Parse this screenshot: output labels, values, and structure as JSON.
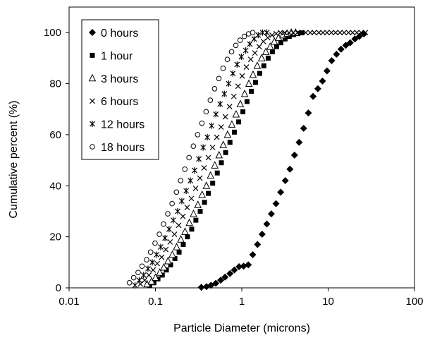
{
  "chart_data": {
    "type": "scatter",
    "xscale": "log",
    "xlim": [
      0.01,
      100
    ],
    "ylim": [
      0,
      110
    ],
    "xlabel": "Particle Diameter (microns)",
    "ylabel": "Cumulative percent (%)",
    "xticks": [
      {
        "value": 0.01,
        "label": "0.01"
      },
      {
        "value": 0.1,
        "label": "0.1"
      },
      {
        "value": 1,
        "label": "1"
      },
      {
        "value": 10,
        "label": "10"
      },
      {
        "value": 100,
        "label": "100"
      }
    ],
    "yticks": [
      {
        "value": 0,
        "label": "0"
      },
      {
        "value": 20,
        "label": "20"
      },
      {
        "value": 40,
        "label": "40"
      },
      {
        "value": 60,
        "label": "60"
      },
      {
        "value": 80,
        "label": "80"
      },
      {
        "value": 100,
        "label": "100"
      }
    ],
    "grid": false,
    "legend_position": "top-left",
    "series": [
      {
        "name": "0 hours",
        "marker": "diamond",
        "points": [
          [
            0.34,
            0.2
          ],
          [
            0.39,
            0.5
          ],
          [
            0.44,
            1.0
          ],
          [
            0.5,
            1.8
          ],
          [
            0.57,
            3.0
          ],
          [
            0.64,
            4.2
          ],
          [
            0.73,
            5.6
          ],
          [
            0.82,
            7.0
          ],
          [
            0.93,
            8.3
          ],
          [
            1.05,
            8.5
          ],
          [
            1.19,
            9.0
          ],
          [
            1.34,
            13.0
          ],
          [
            1.52,
            17.0
          ],
          [
            1.72,
            21.0
          ],
          [
            1.95,
            25.0
          ],
          [
            2.2,
            29.0
          ],
          [
            2.49,
            33.0
          ],
          [
            2.82,
            37.5
          ],
          [
            3.19,
            42.0
          ],
          [
            3.61,
            46.5
          ],
          [
            4.08,
            52.0
          ],
          [
            4.61,
            57.0
          ],
          [
            5.2,
            62.5
          ],
          [
            5.9,
            68.5
          ],
          [
            6.7,
            75.0
          ],
          [
            7.6,
            78.0
          ],
          [
            8.6,
            81.0
          ],
          [
            9.7,
            85.0
          ],
          [
            11.0,
            89.0
          ],
          [
            12.5,
            91.5
          ],
          [
            14.1,
            93.5
          ],
          [
            16.0,
            95.0
          ],
          [
            18.0,
            96.0
          ],
          [
            20.4,
            97.5
          ],
          [
            23.0,
            98.5
          ],
          [
            26.0,
            99.5
          ]
        ]
      },
      {
        "name": "1 hour",
        "marker": "square",
        "points": [
          [
            0.086,
            1.0
          ],
          [
            0.096,
            2.0
          ],
          [
            0.107,
            3.5
          ],
          [
            0.12,
            5.0
          ],
          [
            0.134,
            7.0
          ],
          [
            0.15,
            9.0
          ],
          [
            0.168,
            11.5
          ],
          [
            0.188,
            14.0
          ],
          [
            0.21,
            17.0
          ],
          [
            0.235,
            20.0
          ],
          [
            0.263,
            23.0
          ],
          [
            0.294,
            26.5
          ],
          [
            0.33,
            30.0
          ],
          [
            0.37,
            33.5
          ],
          [
            0.41,
            37.0
          ],
          [
            0.46,
            41.0
          ],
          [
            0.52,
            45.0
          ],
          [
            0.58,
            49.0
          ],
          [
            0.65,
            53.0
          ],
          [
            0.73,
            57.0
          ],
          [
            0.82,
            61.0
          ],
          [
            0.92,
            65.0
          ],
          [
            1.03,
            69.0
          ],
          [
            1.15,
            73.0
          ],
          [
            1.29,
            77.0
          ],
          [
            1.44,
            80.5
          ],
          [
            1.61,
            84.0
          ],
          [
            1.8,
            87.0
          ],
          [
            2.02,
            90.0
          ],
          [
            2.26,
            92.5
          ],
          [
            2.53,
            94.5
          ],
          [
            2.83,
            96.0
          ],
          [
            3.17,
            97.5
          ],
          [
            3.55,
            98.5
          ],
          [
            3.97,
            99.2
          ],
          [
            4.45,
            99.6
          ],
          [
            4.98,
            99.9
          ]
        ]
      },
      {
        "name": "3 hours",
        "marker": "triangle",
        "points": [
          [
            0.08,
            1.5
          ],
          [
            0.09,
            2.5
          ],
          [
            0.1,
            4.0
          ],
          [
            0.112,
            6.0
          ],
          [
            0.125,
            8.0
          ],
          [
            0.14,
            10.5
          ],
          [
            0.157,
            13.0
          ],
          [
            0.176,
            16.0
          ],
          [
            0.197,
            19.0
          ],
          [
            0.22,
            22.0
          ],
          [
            0.247,
            25.5
          ],
          [
            0.276,
            29.0
          ],
          [
            0.31,
            32.5
          ],
          [
            0.347,
            36.5
          ],
          [
            0.389,
            40.0
          ],
          [
            0.435,
            44.0
          ],
          [
            0.487,
            48.0
          ],
          [
            0.546,
            52.0
          ],
          [
            0.61,
            56.0
          ],
          [
            0.685,
            60.0
          ],
          [
            0.767,
            64.0
          ],
          [
            0.859,
            68.0
          ],
          [
            0.962,
            72.0
          ],
          [
            1.08,
            76.0
          ],
          [
            1.21,
            80.0
          ],
          [
            1.35,
            83.5
          ],
          [
            1.51,
            87.0
          ],
          [
            1.7,
            90.0
          ],
          [
            1.9,
            92.5
          ],
          [
            2.13,
            94.5
          ],
          [
            2.38,
            96.5
          ],
          [
            2.67,
            98.0
          ],
          [
            2.99,
            99.0
          ],
          [
            3.35,
            99.6
          ],
          [
            3.75,
            100.0
          ],
          [
            4.2,
            100.0
          ]
        ]
      },
      {
        "name": "6 hours",
        "marker": "x",
        "points": [
          [
            0.067,
            1.5
          ],
          [
            0.075,
            3.0
          ],
          [
            0.084,
            5.0
          ],
          [
            0.094,
            7.0
          ],
          [
            0.105,
            9.5
          ],
          [
            0.118,
            12.0
          ],
          [
            0.132,
            15.0
          ],
          [
            0.148,
            18.0
          ],
          [
            0.166,
            21.0
          ],
          [
            0.186,
            24.5
          ],
          [
            0.208,
            28.0
          ],
          [
            0.233,
            31.5
          ],
          [
            0.261,
            35.0
          ],
          [
            0.292,
            39.0
          ],
          [
            0.327,
            43.0
          ],
          [
            0.366,
            47.0
          ],
          [
            0.41,
            51.0
          ],
          [
            0.459,
            55.0
          ],
          [
            0.514,
            59.0
          ],
          [
            0.576,
            63.0
          ],
          [
            0.645,
            67.0
          ],
          [
            0.722,
            71.0
          ],
          [
            0.809,
            75.0
          ],
          [
            0.906,
            79.0
          ],
          [
            1.01,
            83.0
          ],
          [
            1.13,
            86.5
          ],
          [
            1.27,
            89.5
          ],
          [
            1.42,
            92.0
          ],
          [
            1.59,
            94.5
          ],
          [
            1.78,
            96.5
          ],
          [
            2.0,
            98.0
          ],
          [
            2.24,
            99.0
          ],
          [
            2.5,
            99.6
          ],
          [
            2.8,
            100.0
          ],
          [
            3.14,
            100.0
          ],
          [
            3.52,
            100.0
          ],
          [
            3.94,
            100.0
          ],
          [
            4.41,
            100.0
          ],
          [
            4.94,
            100.0
          ],
          [
            5.5,
            100.0
          ],
          [
            6.2,
            100.0
          ],
          [
            6.9,
            100.0
          ],
          [
            7.8,
            100.0
          ],
          [
            8.7,
            100.0
          ],
          [
            9.7,
            100.0
          ],
          [
            10.9,
            100.0
          ],
          [
            12.2,
            100.0
          ],
          [
            13.7,
            100.0
          ],
          [
            15.3,
            100.0
          ],
          [
            17.2,
            100.0
          ],
          [
            19.2,
            100.0
          ],
          [
            21.5,
            100.0
          ],
          [
            24.1,
            100.0
          ],
          [
            27.0,
            100.0
          ]
        ]
      },
      {
        "name": "12 hours",
        "marker": "asterisk",
        "points": [
          [
            0.058,
            1.0
          ],
          [
            0.065,
            3.0
          ],
          [
            0.073,
            5.0
          ],
          [
            0.082,
            7.5
          ],
          [
            0.092,
            10.0
          ],
          [
            0.103,
            13.0
          ],
          [
            0.115,
            16.0
          ],
          [
            0.129,
            19.5
          ],
          [
            0.144,
            23.0
          ],
          [
            0.161,
            26.5
          ],
          [
            0.181,
            30.0
          ],
          [
            0.202,
            34.0
          ],
          [
            0.227,
            38.0
          ],
          [
            0.254,
            42.0
          ],
          [
            0.284,
            46.0
          ],
          [
            0.318,
            50.5
          ],
          [
            0.357,
            55.0
          ],
          [
            0.399,
            59.0
          ],
          [
            0.447,
            63.5
          ],
          [
            0.501,
            68.0
          ],
          [
            0.561,
            72.0
          ],
          [
            0.628,
            76.0
          ],
          [
            0.704,
            80.0
          ],
          [
            0.788,
            84.0
          ],
          [
            0.882,
            87.5
          ],
          [
            0.988,
            90.5
          ],
          [
            1.11,
            93.0
          ],
          [
            1.24,
            95.5
          ],
          [
            1.39,
            97.5
          ],
          [
            1.55,
            99.0
          ],
          [
            1.74,
            100.0
          ],
          [
            1.95,
            100.0
          ]
        ]
      },
      {
        "name": "18 hours",
        "marker": "circle",
        "points": [
          [
            0.05,
            2.0
          ],
          [
            0.056,
            4.0
          ],
          [
            0.063,
            6.0
          ],
          [
            0.07,
            8.5
          ],
          [
            0.079,
            11.0
          ],
          [
            0.088,
            14.0
          ],
          [
            0.099,
            17.5
          ],
          [
            0.111,
            21.0
          ],
          [
            0.124,
            25.0
          ],
          [
            0.139,
            29.0
          ],
          [
            0.156,
            33.0
          ],
          [
            0.175,
            37.5
          ],
          [
            0.196,
            42.0
          ],
          [
            0.219,
            46.5
          ],
          [
            0.245,
            51.0
          ],
          [
            0.275,
            55.5
          ],
          [
            0.308,
            60.0
          ],
          [
            0.345,
            64.5
          ],
          [
            0.386,
            69.0
          ],
          [
            0.432,
            73.5
          ],
          [
            0.484,
            78.0
          ],
          [
            0.542,
            82.0
          ],
          [
            0.607,
            86.0
          ],
          [
            0.68,
            89.5
          ],
          [
            0.762,
            92.5
          ],
          [
            0.853,
            95.0
          ],
          [
            0.955,
            97.0
          ],
          [
            1.07,
            98.5
          ],
          [
            1.2,
            99.5
          ],
          [
            1.34,
            100.0
          ]
        ]
      }
    ]
  }
}
